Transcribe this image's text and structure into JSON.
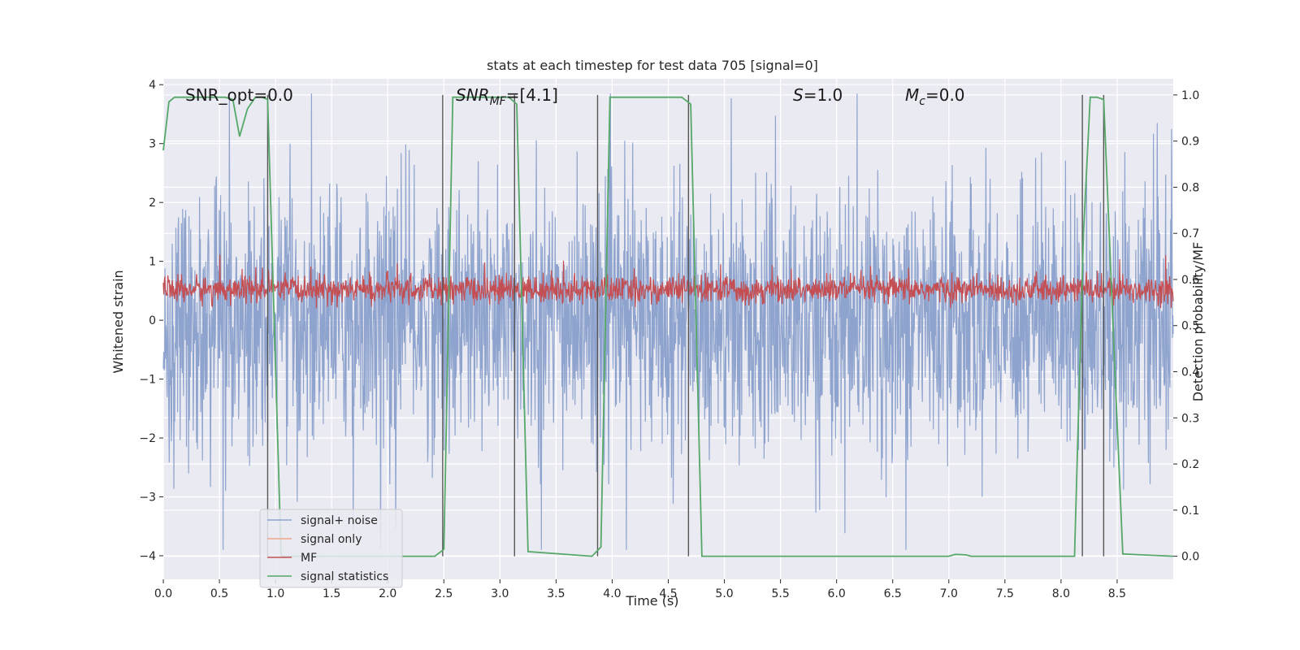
{
  "chart_data": {
    "type": "line",
    "title": "stats at each timestep for test data 705 [signal=0]",
    "xlabel": "Time (s)",
    "ylabel_left": "Whitened strain",
    "ylabel_right": "Detection probability/MF",
    "xlim": [
      0.0,
      9.0
    ],
    "ylim_left": [
      -4.4,
      4.1
    ],
    "ylim_right": [
      -0.05,
      1.035
    ],
    "x_ticks": [
      "0.0",
      "0.5",
      "1.0",
      "1.5",
      "2.0",
      "2.5",
      "3.0",
      "3.5",
      "4.0",
      "4.5",
      "5.0",
      "5.5",
      "6.0",
      "6.5",
      "7.0",
      "7.5",
      "8.0",
      "8.5"
    ],
    "y_left_ticks": [
      "4",
      "3",
      "2",
      "1",
      "0",
      "−1",
      "−2",
      "−3",
      "−4"
    ],
    "y_right_ticks": [
      "1.0",
      "0.9",
      "0.8",
      "0.7",
      "0.6",
      "0.5",
      "0.4",
      "0.3",
      "0.2",
      "0.1",
      "0.0"
    ],
    "grid": true,
    "legend_position": "lower-left",
    "annotations": {
      "snr_opt": "SNR_opt=0.0",
      "snr_mf_base": "SNR",
      "snr_mf_sub": "MF",
      "snr_mf_val": "=[4.1]",
      "s_base": "S",
      "s_val": "=1.0",
      "mc_base": "M",
      "mc_sub": "c",
      "mc_val": "=0.0"
    },
    "series": [
      {
        "name": "signal+ noise",
        "color": "#8ea3cd",
        "axis": "left",
        "style": "dense noise, amplitude about ±2.5 with spikes to about ±3.8"
      },
      {
        "name": "signal only",
        "color": "#f0a58a",
        "axis": "left",
        "values": []
      },
      {
        "name": "MF",
        "color": "#c44e52",
        "axis": "right",
        "style": "dense noise, range about 0.54 to 0.62, spikes to 0.65"
      },
      {
        "name": "signal statistics",
        "color": "#55a868",
        "axis": "right",
        "x": [
          0.0,
          0.05,
          0.1,
          0.55,
          0.62,
          0.68,
          0.75,
          0.82,
          0.88,
          0.93,
          1.05,
          2.42,
          2.5,
          2.58,
          3.08,
          3.15,
          3.25,
          3.82,
          3.9,
          3.98,
          4.62,
          4.7,
          4.8,
          7.0,
          7.06,
          7.15,
          7.2,
          8.12,
          8.2,
          8.26,
          8.32,
          8.38,
          8.48,
          8.55,
          9.0
        ],
        "y": [
          0.88,
          0.985,
          0.995,
          0.995,
          0.99,
          0.91,
          0.97,
          0.995,
          0.995,
          0.99,
          0.0,
          0.0,
          0.015,
          0.995,
          0.995,
          0.98,
          0.01,
          0.0,
          0.02,
          0.995,
          0.995,
          0.98,
          0.0,
          0.0,
          0.004,
          0.003,
          0.0,
          0.0,
          0.7,
          0.995,
          0.995,
          0.99,
          0.4,
          0.005,
          0.0
        ]
      }
    ],
    "vertical_markers": [
      0.93,
      2.49,
      3.13,
      3.87,
      4.68,
      8.19,
      8.38
    ],
    "marker_color": "#555555"
  }
}
